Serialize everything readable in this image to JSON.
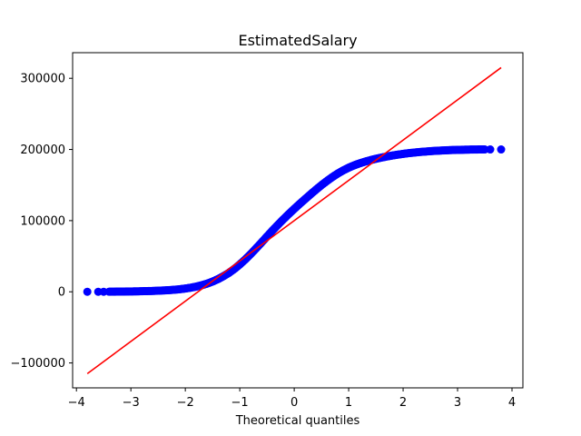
{
  "chart_data": {
    "type": "scatter",
    "title": "EstimatedSalary",
    "xlabel": "Theoretical quantiles",
    "ylabel": "",
    "xlim": [
      -4.07,
      4.2
    ],
    "ylim": [
      -135000,
      336000
    ],
    "x_ticks": [
      -4,
      -3,
      -2,
      -1,
      0,
      1,
      2,
      3,
      4
    ],
    "x_tick_labels": [
      "−4",
      "−3",
      "−2",
      "−1",
      "0",
      "1",
      "2",
      "3",
      "4"
    ],
    "y_ticks": [
      -100000,
      0,
      100000,
      200000,
      300000
    ],
    "y_tick_labels": [
      "−100000",
      "0",
      "100000",
      "200000",
      "300000"
    ],
    "grid": false,
    "series": [
      {
        "kind": "points",
        "color": "#0000ff",
        "points": [
          [
            -3.8,
            0
          ],
          [
            -3.6,
            0
          ],
          [
            -3.5,
            0
          ],
          [
            -3.4,
            100
          ],
          [
            -3.3,
            200
          ],
          [
            -3.2,
            300
          ],
          [
            -3.1,
            400
          ],
          [
            -3.0,
            500
          ],
          [
            -2.9,
            600
          ],
          [
            -2.8,
            800
          ],
          [
            -2.7,
            1000
          ],
          [
            -2.6,
            1200
          ],
          [
            -2.5,
            1500
          ],
          [
            -2.4,
            1900
          ],
          [
            -2.3,
            2300
          ],
          [
            -2.2,
            2900
          ],
          [
            -2.1,
            3600
          ],
          [
            -2.0,
            4600
          ],
          [
            -1.9,
            5800
          ],
          [
            -1.8,
            7300
          ],
          [
            -1.7,
            9200
          ],
          [
            -1.6,
            11500
          ],
          [
            -1.5,
            14400
          ],
          [
            -1.4,
            17800
          ],
          [
            -1.3,
            21900
          ],
          [
            -1.2,
            26600
          ],
          [
            -1.1,
            32100
          ],
          [
            -1.0,
            38400
          ],
          [
            -0.9,
            45400
          ],
          [
            -0.8,
            53000
          ],
          [
            -0.7,
            61000
          ],
          [
            -0.6,
            69300
          ],
          [
            -0.5,
            77700
          ],
          [
            -0.4,
            86000
          ],
          [
            -0.3,
            94100
          ],
          [
            -0.2,
            101800
          ],
          [
            -0.1,
            109300
          ],
          [
            0.0,
            116500
          ],
          [
            0.1,
            123500
          ],
          [
            0.2,
            130300
          ],
          [
            0.3,
            137000
          ],
          [
            0.4,
            143500
          ],
          [
            0.5,
            149800
          ],
          [
            0.6,
            155700
          ],
          [
            0.7,
            161200
          ],
          [
            0.8,
            166200
          ],
          [
            0.9,
            170600
          ],
          [
            1.0,
            174400
          ],
          [
            1.1,
            177700
          ],
          [
            1.2,
            180500
          ],
          [
            1.3,
            182900
          ],
          [
            1.4,
            185000
          ],
          [
            1.5,
            186900
          ],
          [
            1.6,
            188600
          ],
          [
            1.7,
            190100
          ],
          [
            1.8,
            191500
          ],
          [
            1.9,
            192700
          ],
          [
            2.0,
            193800
          ],
          [
            2.1,
            194800
          ],
          [
            2.2,
            195600
          ],
          [
            2.3,
            196400
          ],
          [
            2.4,
            197000
          ],
          [
            2.5,
            197600
          ],
          [
            2.6,
            198100
          ],
          [
            2.7,
            198500
          ],
          [
            2.8,
            198900
          ],
          [
            2.9,
            199200
          ],
          [
            3.0,
            199400
          ],
          [
            3.1,
            199600
          ],
          [
            3.2,
            199800
          ],
          [
            3.3,
            199900
          ],
          [
            3.4,
            200000
          ],
          [
            3.5,
            200000
          ],
          [
            3.6,
            200000
          ],
          [
            3.8,
            200000
          ]
        ]
      },
      {
        "kind": "line",
        "color": "#ff0000",
        "points": [
          [
            -3.8,
            -115000
          ],
          [
            3.8,
            315000
          ]
        ]
      }
    ]
  }
}
